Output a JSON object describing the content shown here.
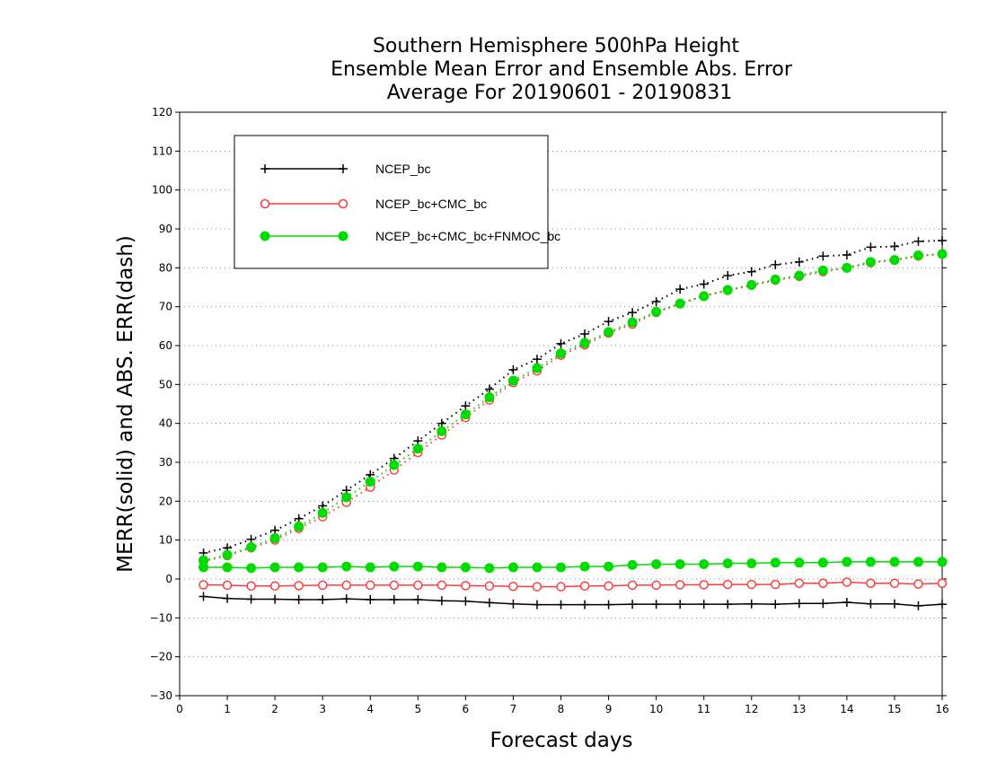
{
  "chart_data": {
    "type": "line",
    "title_lines": [
      "Southern Hemisphere 500hPa Height",
      "Ensemble Mean Error and Ensemble Abs. Error",
      "Average For 20190601 - 20190831"
    ],
    "xlabel": "Forecast days",
    "ylabel": "MERR(solid) and ABS. ERR(dash)",
    "xlim": [
      0,
      16
    ],
    "ylim": [
      -30,
      120
    ],
    "xticks": [
      "0",
      "1",
      "2",
      "3",
      "4",
      "5",
      "6",
      "7",
      "8",
      "9",
      "10",
      "11",
      "12",
      "13",
      "14",
      "15",
      "16"
    ],
    "yticks": [
      "120",
      "110",
      "100",
      "90",
      "80",
      "70",
      "60",
      "50",
      "40",
      "30",
      "20",
      "10",
      "0",
      "−10",
      "−20",
      "−30"
    ],
    "grid": "horizontal dotted",
    "legend_position": "top-left",
    "x": [
      0.5,
      1,
      1.5,
      2,
      2.5,
      3,
      3.5,
      4,
      4.5,
      5,
      5.5,
      6,
      6.5,
      7,
      7.5,
      8,
      8.5,
      9,
      9.5,
      10,
      10.5,
      11,
      11.5,
      12,
      12.5,
      13,
      13.5,
      14,
      14.5,
      15,
      15.5,
      16
    ],
    "series": [
      {
        "name": "NCEP_bc",
        "color": "#000000",
        "marker": "plus",
        "mean_error": [
          -4.5,
          -5,
          -5.2,
          -5.2,
          -5.3,
          -5.3,
          -5.1,
          -5.3,
          -5.3,
          -5.3,
          -5.6,
          -5.7,
          -6.1,
          -6.4,
          -6.6,
          -6.6,
          -6.6,
          -6.6,
          -6.5,
          -6.5,
          -6.5,
          -6.5,
          -6.5,
          -6.4,
          -6.5,
          -6.3,
          -6.3,
          -6,
          -6.4,
          -6.4,
          -6.9,
          -6.5
        ],
        "abs_error": [
          6.7,
          8,
          10.2,
          12.5,
          15.5,
          18.8,
          22.8,
          26.8,
          31,
          35.5,
          40,
          44.5,
          48.8,
          53.8,
          56.5,
          60.5,
          63,
          66.2,
          68.5,
          71.3,
          74.5,
          75.8,
          78,
          79,
          80.8,
          81.5,
          83,
          83.3,
          85.3,
          85.5,
          86.8,
          87
        ]
      },
      {
        "name": "NCEP_bc+CMC_bc",
        "color": "#ff3c3c",
        "marker": "open-circle",
        "mean_error": [
          -1.5,
          -1.6,
          -1.8,
          -1.8,
          -1.7,
          -1.6,
          -1.6,
          -1.6,
          -1.6,
          -1.6,
          -1.6,
          -1.7,
          -1.8,
          -1.9,
          -2,
          -2,
          -1.8,
          -1.8,
          -1.6,
          -1.6,
          -1.5,
          -1.5,
          -1.4,
          -1.4,
          -1.4,
          -1.1,
          -1.1,
          -0.8,
          -1.1,
          -1.1,
          -1.3,
          -1.1
        ],
        "abs_error": [
          4.5,
          6,
          8,
          10,
          13,
          16,
          19.7,
          23.6,
          28,
          32.5,
          37,
          41.5,
          46,
          50.5,
          53.5,
          57.5,
          60.2,
          63.2,
          65.5,
          68.5,
          70.8,
          72.8,
          74.2,
          75.5,
          76.8,
          77.8,
          79,
          80,
          81.3,
          82,
          83,
          83.6
        ]
      },
      {
        "name": "NCEP_bc+CMC_bc+FNMOC_bc",
        "color": "#00dc00",
        "marker": "filled-circle",
        "mean_error": [
          3,
          3,
          2.8,
          3,
          3,
          3,
          3.2,
          3,
          3.2,
          3.2,
          3,
          3,
          2.8,
          3,
          3,
          3,
          3.2,
          3.2,
          3.6,
          3.8,
          3.8,
          3.8,
          4,
          4,
          4.2,
          4.2,
          4.2,
          4.4,
          4.4,
          4.4,
          4.4,
          4.4
        ],
        "abs_error": [
          4.8,
          6.2,
          8.2,
          10.5,
          13.5,
          17,
          21,
          25,
          29.3,
          33.5,
          38,
          42.3,
          46.7,
          51,
          54.2,
          58,
          60.7,
          63.5,
          66,
          68.7,
          70.8,
          72.7,
          74.3,
          75.6,
          77,
          78,
          79.3,
          80,
          81.5,
          82,
          83.2,
          83.5
        ]
      }
    ]
  }
}
